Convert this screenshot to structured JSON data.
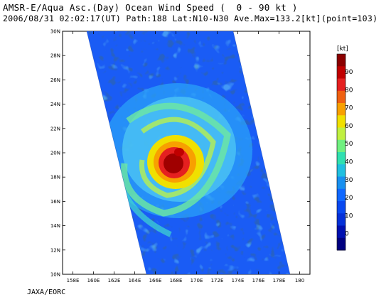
{
  "header": {
    "title_line1": "AMSR-E/Aqua Asc.(Day) Ocean Wind Speed (  0 - 90 kt )",
    "title_line2": "2006/08/31 02:02:17(UT) Path:188 Lat:N10-N30 Ave.Max=133.2[kt](point=103)"
  },
  "map": {
    "x_tick_labels": [
      "158E",
      "160E",
      "162E",
      "164E",
      "166E",
      "168E",
      "170E",
      "172E",
      "174E",
      "176E",
      "178E",
      "180"
    ],
    "y_tick_labels": [
      "30N",
      "28N",
      "26N",
      "24N",
      "22N",
      "20N",
      "18N",
      "16N",
      "14N",
      "12N",
      "10N"
    ],
    "lon_range": [
      157,
      181
    ],
    "lat_range": [
      10,
      30
    ],
    "storm_center": {
      "lon": 168.0,
      "lat": 19.0
    }
  },
  "colorbar": {
    "unit_label": "[kt]",
    "labels": [
      "90",
      "80",
      "70",
      "60",
      "50",
      "40",
      "30",
      "20",
      "10",
      "0"
    ],
    "colors": [
      "#8b0000",
      "#c00000",
      "#e52020",
      "#f06010",
      "#f8a000",
      "#f0e000",
      "#c0f040",
      "#70f080",
      "#30e0b0",
      "#20c0e0",
      "#1890f0",
      "#1068ff",
      "#0848f0",
      "#0430d8",
      "#0010b0",
      "#000080"
    ]
  },
  "footer": {
    "credit": "JAXA/EORC"
  }
}
